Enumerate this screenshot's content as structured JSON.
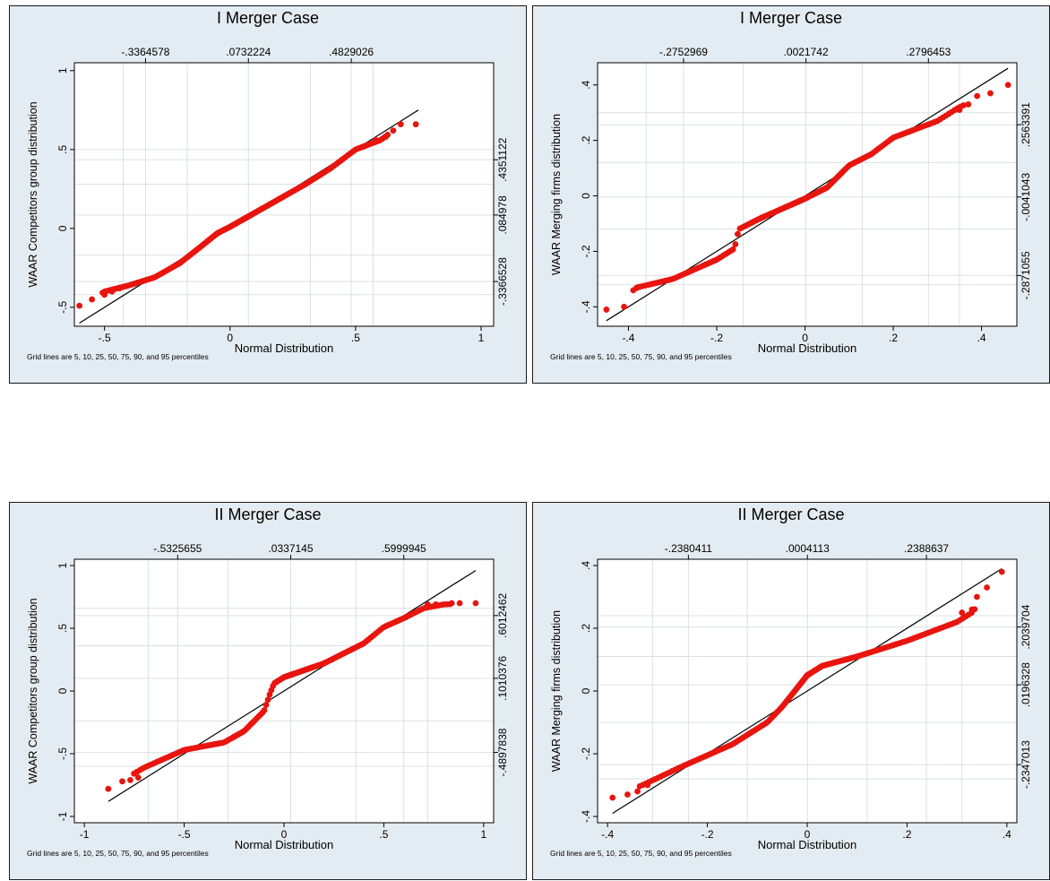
{
  "chart_data": [
    {
      "type": "scatter",
      "title": "I Merger Case",
      "xlabel": "Normal Distribution",
      "ylabel": "WAAR Competitors group distribution",
      "xlim": [
        -0.62,
        1.05
      ],
      "ylim": [
        -0.62,
        1.05
      ],
      "xticks": [
        "-.5",
        "0",
        ".5",
        "1"
      ],
      "xtick_values": [
        -0.5,
        0,
        0.5,
        1
      ],
      "yticks": [
        "-.5",
        "0",
        ".5",
        "1"
      ],
      "ytick_values": [
        -0.5,
        0,
        0.5,
        1
      ],
      "top_percentile_labels": [
        "-.3364578",
        ".0732224",
        ".4829026"
      ],
      "top_percentile_values": [
        -0.3364578,
        0.0732224,
        0.4829026
      ],
      "right_percentile_labels": [
        "-.3366528",
        ".084978",
        ".4351122"
      ],
      "right_percentile_values": [
        -0.3366528,
        0.084978,
        0.4351122
      ],
      "x_grid": [
        -0.425,
        -0.3364578,
        -0.17,
        0.0732224,
        0.32,
        0.4829026,
        0.57
      ],
      "y_grid": [
        -0.42,
        -0.3366528,
        -0.17,
        0.084978,
        0.28,
        0.4351122,
        0.5
      ],
      "reference_line": [
        [
          -0.6,
          -0.6
        ],
        [
          0.75,
          0.75
        ]
      ],
      "knots": [
        [
          -0.6,
          -0.49
        ],
        [
          -0.5,
          -0.4
        ],
        [
          -0.4,
          -0.36
        ],
        [
          -0.3,
          -0.31
        ],
        [
          -0.2,
          -0.22
        ],
        [
          -0.12,
          -0.12
        ],
        [
          -0.05,
          -0.03
        ],
        [
          0.0,
          0.01
        ],
        [
          0.1,
          0.1
        ],
        [
          0.2,
          0.19
        ],
        [
          0.3,
          0.28
        ],
        [
          0.4,
          0.38
        ],
        [
          0.5,
          0.5
        ],
        [
          0.6,
          0.56
        ],
        [
          0.65,
          0.62
        ],
        [
          0.72,
          0.66
        ]
      ],
      "tail_points": [
        [
          -0.6,
          -0.49
        ],
        [
          -0.55,
          -0.45
        ],
        [
          -0.5,
          -0.42
        ],
        [
          -0.47,
          -0.4
        ],
        [
          -0.44,
          -0.38
        ],
        [
          0.58,
          0.56
        ],
        [
          0.62,
          0.58
        ],
        [
          0.65,
          0.62
        ],
        [
          0.68,
          0.66
        ],
        [
          0.74,
          0.66
        ]
      ],
      "n_points": 150,
      "note": "Grid lines are 5, 10, 25, 50, 75, 90, and 95 percentiles"
    },
    {
      "type": "scatter",
      "title": "I Merger Case",
      "xlabel": "Normal Distribution",
      "ylabel": "WAAR Merging firms distribution",
      "xlim": [
        -0.47,
        0.48
      ],
      "ylim": [
        -0.47,
        0.48
      ],
      "xticks": [
        "-.4",
        "-.2",
        "0",
        ".2",
        ".4"
      ],
      "xtick_values": [
        -0.4,
        -0.2,
        0,
        0.2,
        0.4
      ],
      "yticks": [
        "-.4",
        "-.2",
        "0",
        ".2",
        ".4"
      ],
      "ytick_values": [
        -0.4,
        -0.2,
        0,
        0.2,
        0.4
      ],
      "top_percentile_labels": [
        "-.2752969",
        ".0021742",
        ".2796453"
      ],
      "top_percentile_values": [
        -0.2752969,
        0.0021742,
        0.2796453
      ],
      "right_percentile_labels": [
        "-.2871055",
        "-.0041043",
        ".2563391"
      ],
      "right_percentile_values": [
        -0.2871055,
        -0.0041043,
        0.2563391
      ],
      "x_grid": [
        -0.36,
        -0.2752969,
        -0.14,
        0.0021742,
        0.13,
        0.2796453,
        0.35
      ],
      "y_grid": [
        -0.32,
        -0.2871055,
        -0.12,
        -0.0041043,
        0.12,
        0.2563391,
        0.3
      ],
      "reference_line": [
        [
          -0.45,
          -0.45
        ],
        [
          0.46,
          0.46
        ]
      ],
      "knots": [
        [
          -0.45,
          -0.41
        ],
        [
          -0.38,
          -0.33
        ],
        [
          -0.3,
          -0.3
        ],
        [
          -0.2,
          -0.23
        ],
        [
          -0.16,
          -0.19
        ],
        [
          -0.15,
          -0.12
        ],
        [
          -0.1,
          -0.08
        ],
        [
          0.0,
          -0.01
        ],
        [
          0.05,
          0.03
        ],
        [
          0.1,
          0.11
        ],
        [
          0.15,
          0.15
        ],
        [
          0.2,
          0.21
        ],
        [
          0.25,
          0.24
        ],
        [
          0.3,
          0.27
        ],
        [
          0.35,
          0.32
        ],
        [
          0.42,
          0.37
        ]
      ],
      "tail_points": [
        [
          -0.45,
          -0.41
        ],
        [
          -0.41,
          -0.4
        ],
        [
          -0.38,
          -0.33
        ],
        [
          0.35,
          0.31
        ],
        [
          0.37,
          0.33
        ],
        [
          0.39,
          0.36
        ],
        [
          0.42,
          0.37
        ],
        [
          0.46,
          0.4
        ]
      ],
      "n_points": 150,
      "note": "Grid lines are 5, 10, 25, 50, 75, 90, and 95 percentiles"
    },
    {
      "type": "scatter",
      "title": "II Merger Case",
      "xlabel": "Normal Distribution",
      "ylabel": "WAAR Competitors group distribution",
      "xlim": [
        -1.05,
        1.05
      ],
      "ylim": [
        -1.05,
        1.05
      ],
      "xticks": [
        "-1",
        "-.5",
        "0",
        ".5",
        "1"
      ],
      "xtick_values": [
        -1,
        -0.5,
        0,
        0.5,
        1
      ],
      "yticks": [
        "-1",
        "-.5",
        "0",
        ".5",
        "1"
      ],
      "ytick_values": [
        -1,
        -0.5,
        0,
        0.5,
        1
      ],
      "top_percentile_labels": [
        "-.5325655",
        ".0337145",
        ".5999945"
      ],
      "top_percentile_values": [
        -0.5325655,
        0.0337145,
        0.5999945
      ],
      "right_percentile_labels": [
        "-.4897838",
        ".1010376",
        ".6012462"
      ],
      "right_percentile_values": [
        -0.4897838,
        0.1010376,
        0.6012462
      ],
      "x_grid": [
        -0.68,
        -0.5325655,
        -0.28,
        0.0337145,
        0.36,
        0.5999945,
        0.72
      ],
      "y_grid": [
        -0.6,
        -0.4897838,
        -0.24,
        0.1010376,
        0.36,
        0.6012462,
        0.66
      ],
      "reference_line": [
        [
          -0.88,
          -0.88
        ],
        [
          0.96,
          0.96
        ]
      ],
      "knots": [
        [
          -0.88,
          -0.78
        ],
        [
          -0.7,
          -0.61
        ],
        [
          -0.5,
          -0.47
        ],
        [
          -0.3,
          -0.41
        ],
        [
          -0.2,
          -0.32
        ],
        [
          -0.1,
          -0.16
        ],
        [
          -0.07,
          -0.02
        ],
        [
          -0.05,
          0.06
        ],
        [
          0.0,
          0.11
        ],
        [
          0.2,
          0.22
        ],
        [
          0.4,
          0.38
        ],
        [
          0.5,
          0.51
        ],
        [
          0.6,
          0.58
        ],
        [
          0.7,
          0.66
        ],
        [
          0.8,
          0.69
        ],
        [
          0.96,
          0.7
        ]
      ],
      "tail_points": [
        [
          -0.88,
          -0.78
        ],
        [
          -0.81,
          -0.72
        ],
        [
          -0.77,
          -0.71
        ],
        [
          -0.73,
          -0.69
        ],
        [
          0.72,
          0.69
        ],
        [
          0.76,
          0.69
        ],
        [
          0.8,
          0.69
        ],
        [
          0.84,
          0.7
        ],
        [
          0.88,
          0.7
        ],
        [
          0.96,
          0.7
        ]
      ],
      "n_points": 150,
      "note": "Grid lines are 5, 10, 25, 50, 75, 90, and 95 percentiles"
    },
    {
      "type": "scatter",
      "title": "II Merger Case",
      "xlabel": "Normal Distribution",
      "ylabel": "WAAR Merging firms distribution",
      "xlim": [
        -0.42,
        0.42
      ],
      "ylim": [
        -0.42,
        0.42
      ],
      "xticks": [
        "-.4",
        "-.2",
        "0",
        ".2",
        ".4"
      ],
      "xtick_values": [
        -0.4,
        -0.2,
        0,
        0.2,
        0.4
      ],
      "yticks": [
        "-.4",
        "-.2",
        "0",
        ".2",
        ".4"
      ],
      "ytick_values": [
        -0.4,
        -0.2,
        0,
        0.2,
        0.4
      ],
      "top_percentile_labels": [
        "-.2380411",
        ".0004113",
        ".2388637"
      ],
      "top_percentile_values": [
        -0.2380411,
        0.0004113,
        0.2388637
      ],
      "right_percentile_labels": [
        "-.2347013",
        ".0196328",
        ".2039704"
      ],
      "right_percentile_values": [
        -0.2347013,
        0.0196328,
        0.2039704
      ],
      "x_grid": [
        -0.31,
        -0.2380411,
        -0.12,
        0.0004113,
        0.12,
        0.2388637,
        0.31
      ],
      "y_grid": [
        -0.28,
        -0.2347013,
        -0.1,
        0.0196328,
        0.11,
        0.2039704,
        0.24
      ],
      "reference_line": [
        [
          -0.39,
          -0.39
        ],
        [
          0.39,
          0.39
        ]
      ],
      "knots": [
        [
          -0.39,
          -0.34
        ],
        [
          -0.33,
          -0.3
        ],
        [
          -0.25,
          -0.24
        ],
        [
          -0.15,
          -0.17
        ],
        [
          -0.08,
          -0.1
        ],
        [
          -0.05,
          -0.05
        ],
        [
          -0.03,
          -0.01
        ],
        [
          0.0,
          0.05
        ],
        [
          0.03,
          0.08
        ],
        [
          0.1,
          0.11
        ],
        [
          0.2,
          0.16
        ],
        [
          0.25,
          0.19
        ],
        [
          0.3,
          0.22
        ],
        [
          0.33,
          0.25
        ],
        [
          0.36,
          0.31
        ],
        [
          0.39,
          0.38
        ]
      ],
      "tail_points": [
        [
          -0.39,
          -0.34
        ],
        [
          -0.36,
          -0.33
        ],
        [
          -0.34,
          -0.32
        ],
        [
          -0.32,
          -0.3
        ],
        [
          0.31,
          0.25
        ],
        [
          0.33,
          0.26
        ],
        [
          0.34,
          0.3
        ],
        [
          0.36,
          0.33
        ],
        [
          0.39,
          0.38
        ]
      ],
      "n_points": 150,
      "note": "Grid lines are 5, 10, 25, 50, 75, 90, and 95 percentiles"
    }
  ],
  "colors": {
    "points": "#e8150f",
    "reference_line": "#000000",
    "plot_area": "#ffffff",
    "panel_background": "#e3ecf2",
    "grid": "#d9e0e6"
  }
}
